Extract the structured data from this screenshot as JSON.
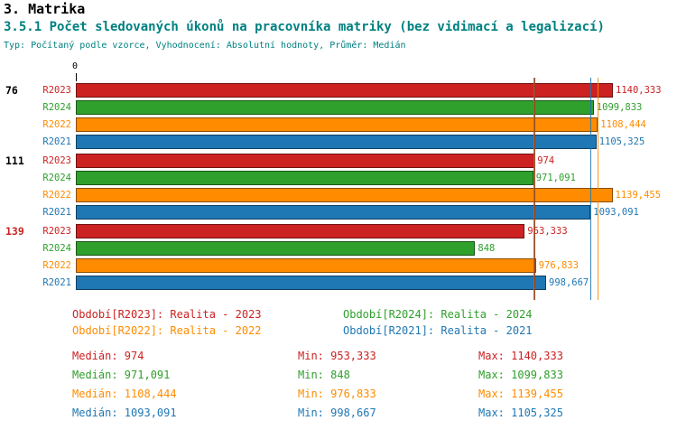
{
  "title": "3. Matrika",
  "subtitle": "3.5.1 Počet sledovaných úkonů na pracovníka matriky (bez vidimací a legalizací)",
  "info_line": "Typ: Počítaný podle vzorce, Vyhodnocení: Absolutní hodnoty, Průměr: Medián",
  "colors": {
    "r2023": "#cc2222",
    "r2024": "#2fa02c",
    "r2022": "#ff8c00",
    "r2021": "#1f77b4",
    "subtitle": "#008080",
    "highlight_group_label": "#cc2222"
  },
  "chart_data": {
    "type": "bar",
    "orientation": "horizontal",
    "axis": {
      "origin_label": "0",
      "max": 1150
    },
    "series": [
      {
        "id": "r2023",
        "label": "R2023",
        "color": "#cc2222"
      },
      {
        "id": "r2024",
        "label": "R2024",
        "color": "#2fa02c"
      },
      {
        "id": "r2022",
        "label": "R2022",
        "color": "#ff8c00"
      },
      {
        "id": "r2021",
        "label": "R2021",
        "color": "#1f77b4"
      }
    ],
    "groups": [
      {
        "label": "76",
        "label_color": "#000000",
        "bars": [
          {
            "series": "R2023",
            "value": 1140.333,
            "value_label": "1140,333",
            "color": "#cc2222"
          },
          {
            "series": "R2024",
            "value": 1099.833,
            "value_label": "1099,833",
            "color": "#2fa02c"
          },
          {
            "series": "R2022",
            "value": 1108.444,
            "value_label": "1108,444",
            "color": "#ff8c00"
          },
          {
            "series": "R2021",
            "value": 1105.325,
            "value_label": "1105,325",
            "color": "#1f77b4"
          }
        ]
      },
      {
        "label": "111",
        "label_color": "#000000",
        "bars": [
          {
            "series": "R2023",
            "value": 974,
            "value_label": "974",
            "color": "#cc2222"
          },
          {
            "series": "R2024",
            "value": 971.091,
            "value_label": "971,091",
            "color": "#2fa02c"
          },
          {
            "series": "R2022",
            "value": 1139.455,
            "value_label": "1139,455",
            "color": "#ff8c00"
          },
          {
            "series": "R2021",
            "value": 1093.091,
            "value_label": "1093,091",
            "color": "#1f77b4"
          }
        ]
      },
      {
        "label": "139",
        "label_color": "#cc2222",
        "bars": [
          {
            "series": "R2023",
            "value": 953.333,
            "value_label": "953,333",
            "color": "#cc2222"
          },
          {
            "series": "R2024",
            "value": 848,
            "value_label": "848",
            "color": "#2fa02c"
          },
          {
            "series": "R2022",
            "value": 976.833,
            "value_label": "976,833",
            "color": "#ff8c00"
          },
          {
            "series": "R2021",
            "value": 998.667,
            "value_label": "998,667",
            "color": "#1f77b4"
          }
        ]
      }
    ],
    "median_lines": [
      {
        "series": "R2023",
        "value": 974,
        "color": "#cc2222"
      },
      {
        "series": "R2024",
        "value": 971.091,
        "color": "#2fa02c"
      },
      {
        "series": "R2022",
        "value": 1108.444,
        "color": "#ff8c00"
      },
      {
        "series": "R2021",
        "value": 1093.091,
        "color": "#1f77b4"
      }
    ]
  },
  "legend": {
    "rows": [
      [
        {
          "label": "Období[R2023]: Realita - 2023",
          "color": "#cc2222"
        },
        {
          "label": "Období[R2024]: Realita - 2024",
          "color": "#2fa02c"
        }
      ],
      [
        {
          "label": "Období[R2022]: Realita - 2022",
          "color": "#ff8c00"
        },
        {
          "label": "Období[R2021]: Realita - 2021",
          "color": "#1f77b4"
        }
      ]
    ]
  },
  "stats": [
    {
      "median": "Medián: 974",
      "min": "Min: 953,333",
      "max": "Max: 1140,333",
      "color": "#cc2222"
    },
    {
      "median": "Medián: 971,091",
      "min": "Min: 848",
      "max": "Max: 1099,833",
      "color": "#2fa02c"
    },
    {
      "median": "Medián: 1108,444",
      "min": "Min: 976,833",
      "max": "Max: 1139,455",
      "color": "#ff8c00"
    },
    {
      "median": "Medián: 1093,091",
      "min": "Min: 998,667",
      "max": "Max: 1105,325",
      "color": "#1f77b4"
    }
  ]
}
